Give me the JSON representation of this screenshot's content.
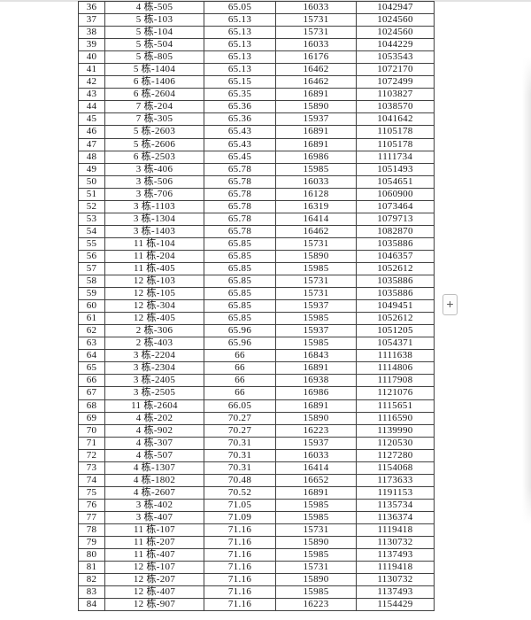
{
  "controls": {
    "plus_button_label": "+"
  },
  "colors": {
    "table_border": "#424242",
    "top_band": "#e2e2e2",
    "button_border": "#bdbdbd",
    "button_text": "#5a5a5a",
    "text": "#141414"
  },
  "table": {
    "visible_row_range": {
      "first": 36,
      "last": 84
    },
    "cell_roles": [
      "row-number",
      "unit-id",
      "area",
      "unit-price",
      "total-price"
    ],
    "rows": [
      [
        "36",
        "4 栋-505",
        "65.05",
        "16033",
        "1042947"
      ],
      [
        "37",
        "5 栋-103",
        "65.13",
        "15731",
        "1024560"
      ],
      [
        "38",
        "5 栋-104",
        "65.13",
        "15731",
        "1024560"
      ],
      [
        "39",
        "5 栋-504",
        "65.13",
        "16033",
        "1044229"
      ],
      [
        "40",
        "5 栋-805",
        "65.13",
        "16176",
        "1053543"
      ],
      [
        "41",
        "5 栋-1404",
        "65.13",
        "16462",
        "1072170"
      ],
      [
        "42",
        "6 栋-1406",
        "65.15",
        "16462",
        "1072499"
      ],
      [
        "43",
        "6 栋-2604",
        "65.35",
        "16891",
        "1103827"
      ],
      [
        "44",
        "7 栋-204",
        "65.36",
        "15890",
        "1038570"
      ],
      [
        "45",
        "7 栋-305",
        "65.36",
        "15937",
        "1041642"
      ],
      [
        "46",
        "5 栋-2603",
        "65.43",
        "16891",
        "1105178"
      ],
      [
        "47",
        "5 栋-2606",
        "65.43",
        "16891",
        "1105178"
      ],
      [
        "48",
        "6 栋-2503",
        "65.45",
        "16986",
        "1111734"
      ],
      [
        "49",
        "3 栋-406",
        "65.78",
        "15985",
        "1051493"
      ],
      [
        "50",
        "3 栋-506",
        "65.78",
        "16033",
        "1054651"
      ],
      [
        "51",
        "3 栋-706",
        "65.78",
        "16128",
        "1060900"
      ],
      [
        "52",
        "3 栋-1103",
        "65.78",
        "16319",
        "1073464"
      ],
      [
        "53",
        "3 栋-1304",
        "65.78",
        "16414",
        "1079713"
      ],
      [
        "54",
        "3 栋-1403",
        "65.78",
        "16462",
        "1082870"
      ],
      [
        "55",
        "11 栋-104",
        "65.85",
        "15731",
        "1035886"
      ],
      [
        "56",
        "11 栋-204",
        "65.85",
        "15890",
        "1046357"
      ],
      [
        "57",
        "11 栋-405",
        "65.85",
        "15985",
        "1052612"
      ],
      [
        "58",
        "12 栋-103",
        "65.85",
        "15731",
        "1035886"
      ],
      [
        "59",
        "12 栋-105",
        "65.85",
        "15731",
        "1035886"
      ],
      [
        "60",
        "12 栋-304",
        "65.85",
        "15937",
        "1049451"
      ],
      [
        "61",
        "12 栋-405",
        "65.85",
        "15985",
        "1052612"
      ],
      [
        "62",
        "2 栋-306",
        "65.96",
        "15937",
        "1051205"
      ],
      [
        "63",
        "2 栋-403",
        "65.96",
        "15985",
        "1054371"
      ],
      [
        "64",
        "3 栋-2204",
        "66",
        "16843",
        "1111638"
      ],
      [
        "65",
        "3 栋-2304",
        "66",
        "16891",
        "1114806"
      ],
      [
        "66",
        "3 栋-2405",
        "66",
        "16938",
        "1117908"
      ],
      [
        "67",
        "3 栋-2505",
        "66",
        "16986",
        "1121076"
      ],
      [
        "68",
        "11 栋-2604",
        "66.05",
        "16891",
        "1115651"
      ],
      [
        "69",
        "4 栋-202",
        "70.27",
        "15890",
        "1116590"
      ],
      [
        "70",
        "4 栋-902",
        "70.27",
        "16223",
        "1139990"
      ],
      [
        "71",
        "4 栋-307",
        "70.31",
        "15937",
        "1120530"
      ],
      [
        "72",
        "4 栋-507",
        "70.31",
        "16033",
        "1127280"
      ],
      [
        "73",
        "4 栋-1307",
        "70.31",
        "16414",
        "1154068"
      ],
      [
        "74",
        "4 栋-1802",
        "70.48",
        "16652",
        "1173633"
      ],
      [
        "75",
        "4 栋-2607",
        "70.52",
        "16891",
        "1191153"
      ],
      [
        "76",
        "3 栋-402",
        "71.05",
        "15985",
        "1135734"
      ],
      [
        "77",
        "3 栋-407",
        "71.09",
        "15985",
        "1136374"
      ],
      [
        "78",
        "11 栋-107",
        "71.16",
        "15731",
        "1119418"
      ],
      [
        "79",
        "11 栋-207",
        "71.16",
        "15890",
        "1130732"
      ],
      [
        "80",
        "11 栋-407",
        "71.16",
        "15985",
        "1137493"
      ],
      [
        "81",
        "12 栋-107",
        "71.16",
        "15731",
        "1119418"
      ],
      [
        "82",
        "12 栋-207",
        "71.16",
        "15890",
        "1130732"
      ],
      [
        "83",
        "12 栋-407",
        "71.16",
        "15985",
        "1137493"
      ],
      [
        "84",
        "12 栋-907",
        "71.16",
        "16223",
        "1154429"
      ]
    ]
  }
}
